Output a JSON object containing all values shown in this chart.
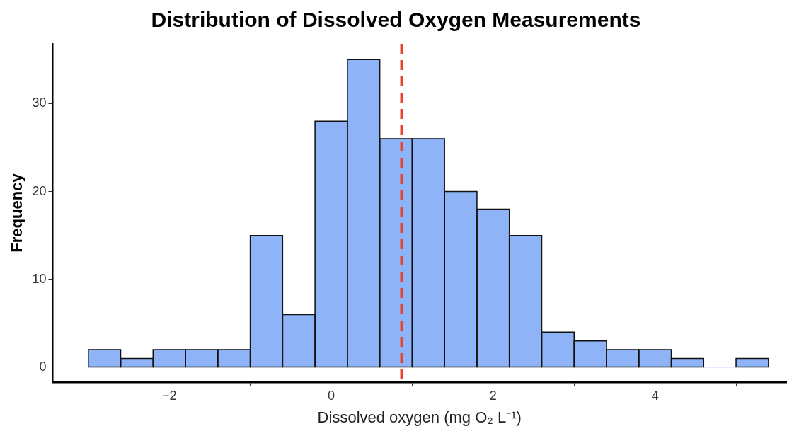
{
  "chart_data": {
    "type": "histogram",
    "title": "Distribution of Dissolved Oxygen Measurements",
    "xlabel": "Dissolved oxygen (mg O₂ L⁻¹)",
    "ylabel": "Frequency",
    "bins": [
      -3.0,
      -2.6,
      -2.2,
      -1.8,
      -1.4,
      -1.0,
      -0.6,
      -0.2,
      0.2,
      0.6,
      1.0,
      1.4,
      1.8,
      2.2,
      2.6,
      3.0,
      3.4,
      3.8,
      4.2,
      4.6,
      5.0,
      5.4
    ],
    "values": [
      2,
      1,
      2,
      2,
      2,
      15,
      6,
      28,
      35,
      26,
      26,
      20,
      18,
      15,
      4,
      3,
      2,
      2,
      1,
      0,
      1
    ],
    "color": "#8fb3f7",
    "xlim": [
      -3.44,
      5.62
    ],
    "xticks": [
      -2,
      0,
      2,
      4
    ],
    "ylim": [
      -1.7,
      36.8
    ],
    "yticks": [
      0,
      10,
      20,
      30
    ],
    "ref_lines": [
      {
        "axis": "x",
        "value": 0.87,
        "color": "#e8432c",
        "line_style": "dashed"
      }
    ],
    "grid": false,
    "legend": false
  }
}
